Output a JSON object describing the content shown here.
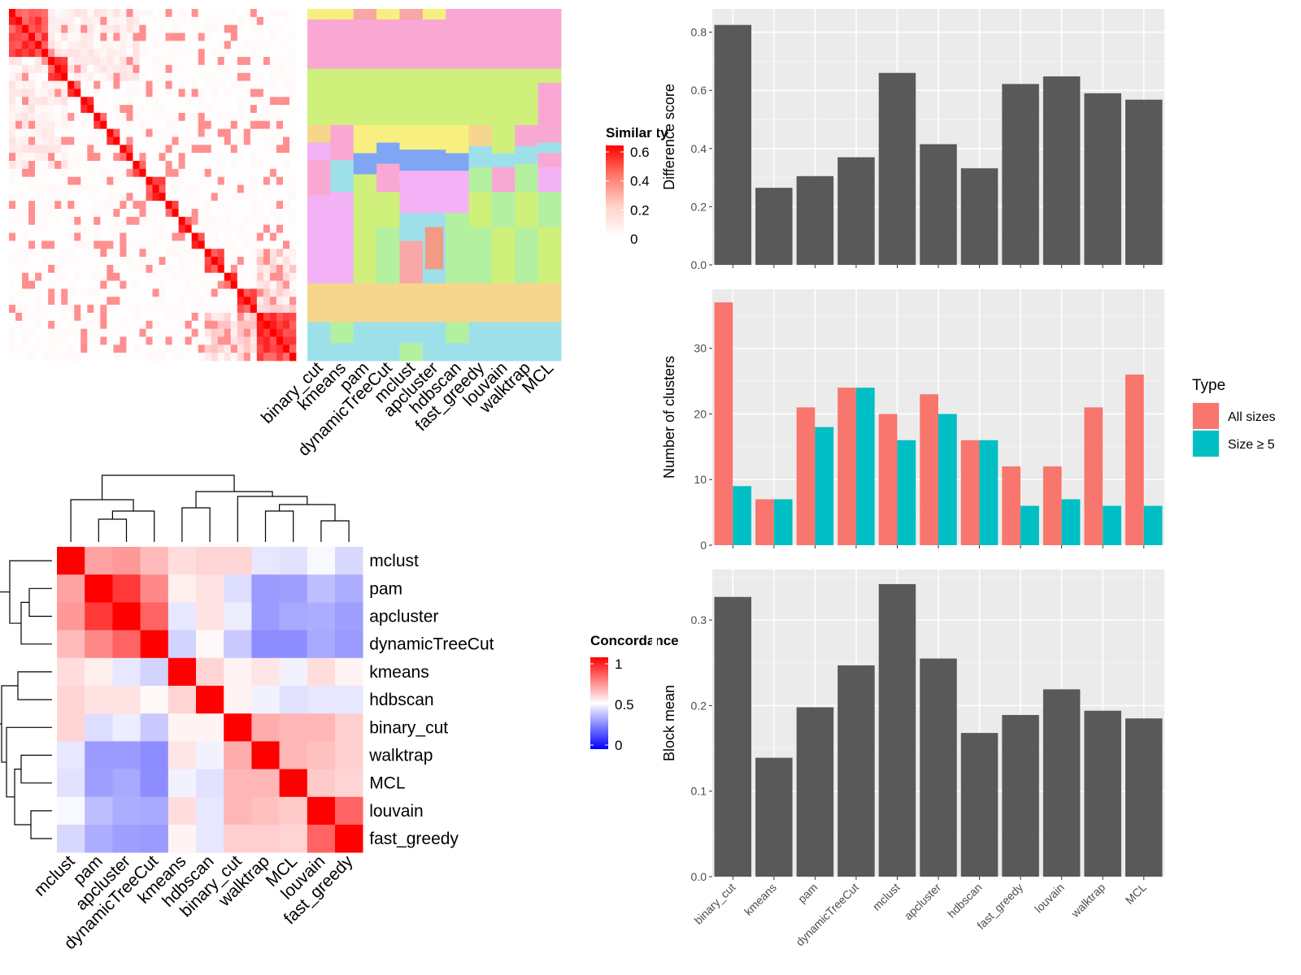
{
  "methods_order_bars": [
    "binary_cut",
    "kmeans",
    "pam",
    "dynamicTreeCut",
    "mclust",
    "apcluster",
    "hdbscan",
    "fast_greedy",
    "louvain",
    "walktrap",
    "MCL"
  ],
  "similarity_panel": {
    "legend_title": "Similarity",
    "legend_ticks": [
      "0.6",
      "0.4",
      "0.2",
      "0"
    ],
    "column_labels": [
      "binary_cut",
      "kmeans",
      "pam",
      "dynamicTreeCut",
      "mclust",
      "apcluster",
      "hdbscan",
      "fast_greedy",
      "louvain",
      "walktrap",
      "MCL"
    ],
    "colors": {
      "low": "#ffffff",
      "high": "#ff0000"
    }
  },
  "concordance_panel": {
    "legend_title": "Concordance",
    "legend_ticks": [
      "1",
      "0.5",
      "0"
    ],
    "labels": [
      "mclust",
      "pam",
      "apcluster",
      "dynamicTreeCut",
      "kmeans",
      "hdbscan",
      "binary_cut",
      "walktrap",
      "MCL",
      "louvain",
      "fast_greedy"
    ],
    "colors": {
      "low": "#0000ff",
      "mid": "#ffffff",
      "high": "#ff0000"
    }
  },
  "chart_data": [
    {
      "type": "heatmap",
      "title": "",
      "note": "similarity matrix with cluster-assignment annotation columns",
      "columns": [
        "binary_cut",
        "kmeans",
        "pam",
        "dynamicTreeCut",
        "mclust",
        "apcluster",
        "hdbscan",
        "fast_greedy",
        "louvain",
        "walktrap",
        "MCL"
      ],
      "legend": {
        "title": "Similarity",
        "range": [
          0,
          0.6
        ]
      }
    },
    {
      "type": "heatmap",
      "title": "",
      "legend": {
        "title": "Concordance",
        "range": [
          0,
          1
        ]
      },
      "rows": [
        "mclust",
        "pam",
        "apcluster",
        "dynamicTreeCut",
        "kmeans",
        "hdbscan",
        "binary_cut",
        "walktrap",
        "MCL",
        "louvain",
        "fast_greedy"
      ],
      "cols": [
        "mclust",
        "pam",
        "apcluster",
        "dynamicTreeCut",
        "kmeans",
        "hdbscan",
        "binary_cut",
        "walktrap",
        "MCL",
        "louvain",
        "fast_greedy"
      ],
      "values": [
        [
          1.0,
          0.7,
          0.72,
          0.65,
          0.58,
          0.6,
          0.6,
          0.46,
          0.45,
          0.49,
          0.43
        ],
        [
          0.7,
          1.0,
          0.9,
          0.75,
          0.54,
          0.57,
          0.44,
          0.3,
          0.31,
          0.38,
          0.34
        ],
        [
          0.72,
          0.9,
          1.0,
          0.82,
          0.46,
          0.57,
          0.47,
          0.3,
          0.33,
          0.34,
          0.31
        ],
        [
          0.65,
          0.75,
          0.82,
          1.0,
          0.42,
          0.52,
          0.4,
          0.27,
          0.27,
          0.33,
          0.3
        ],
        [
          0.58,
          0.54,
          0.46,
          0.42,
          1.0,
          0.6,
          0.53,
          0.56,
          0.48,
          0.58,
          0.53
        ],
        [
          0.6,
          0.57,
          0.57,
          0.52,
          0.6,
          1.0,
          0.53,
          0.48,
          0.45,
          0.46,
          0.46
        ],
        [
          0.6,
          0.44,
          0.47,
          0.4,
          0.53,
          0.53,
          1.0,
          0.68,
          0.66,
          0.66,
          0.61
        ],
        [
          0.46,
          0.3,
          0.3,
          0.27,
          0.56,
          0.48,
          0.68,
          1.0,
          0.66,
          0.64,
          0.61
        ],
        [
          0.45,
          0.31,
          0.33,
          0.27,
          0.48,
          0.45,
          0.66,
          0.66,
          1.0,
          0.62,
          0.6
        ],
        [
          0.49,
          0.38,
          0.34,
          0.33,
          0.58,
          0.46,
          0.66,
          0.64,
          0.62,
          1.0,
          0.82
        ],
        [
          0.43,
          0.34,
          0.31,
          0.3,
          0.53,
          0.46,
          0.61,
          0.61,
          0.6,
          0.82,
          1.0
        ]
      ]
    },
    {
      "type": "bar",
      "categories": [
        "binary_cut",
        "kmeans",
        "pam",
        "dynamicTreeCut",
        "mclust",
        "apcluster",
        "hdbscan",
        "fast_greedy",
        "louvain",
        "walktrap",
        "MCL"
      ],
      "values": [
        0.825,
        0.265,
        0.305,
        0.37,
        0.66,
        0.415,
        0.332,
        0.622,
        0.648,
        0.59,
        0.568
      ],
      "xlabel": "",
      "ylabel": "Difference score",
      "ylim": [
        0,
        0.88
      ],
      "yticks": [
        0.0,
        0.2,
        0.4,
        0.6,
        0.8
      ],
      "ytick_labels": [
        "0.0",
        "0.2",
        "0.4",
        "0.6",
        "0.8"
      ],
      "grid": true,
      "bar_color": "#595959"
    },
    {
      "type": "bar",
      "categories": [
        "binary_cut",
        "kmeans",
        "pam",
        "dynamicTreeCut",
        "mclust",
        "apcluster",
        "hdbscan",
        "fast_greedy",
        "louvain",
        "walktrap",
        "MCL"
      ],
      "series": [
        {
          "name": "All sizes",
          "color": "#f8766d",
          "values": [
            37,
            7,
            21,
            24,
            20,
            23,
            16,
            12,
            12,
            21,
            26
          ]
        },
        {
          "name": "Size ≥ 5",
          "color": "#00bfc4",
          "values": [
            9,
            7,
            18,
            24,
            16,
            20,
            16,
            6,
            7,
            6,
            6
          ]
        }
      ],
      "xlabel": "",
      "ylabel": "Number of clusters",
      "ylim": [
        0,
        39
      ],
      "yticks": [
        0,
        10,
        20,
        30
      ],
      "ytick_labels": [
        "0",
        "10",
        "20",
        "30"
      ],
      "legend": {
        "title": "Type",
        "position": "right"
      },
      "grid": true
    },
    {
      "type": "bar",
      "categories": [
        "binary_cut",
        "kmeans",
        "pam",
        "dynamicTreeCut",
        "mclust",
        "apcluster",
        "hdbscan",
        "fast_greedy",
        "louvain",
        "walktrap",
        "MCL"
      ],
      "values": [
        0.327,
        0.139,
        0.198,
        0.247,
        0.342,
        0.255,
        0.168,
        0.189,
        0.219,
        0.194,
        0.185
      ],
      "xlabel": "",
      "ylabel": "Block mean",
      "ylim": [
        0,
        0.359
      ],
      "yticks": [
        0.0,
        0.1,
        0.2,
        0.3
      ],
      "ytick_labels": [
        "0.0",
        "0.1",
        "0.2",
        "0.3"
      ],
      "grid": true,
      "bar_color": "#595959"
    }
  ]
}
